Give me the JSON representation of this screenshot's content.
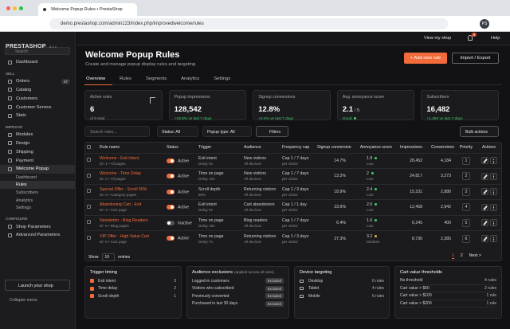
{
  "browser": {
    "tab_title": "Welcome Popup Rules • PrestaShop",
    "url": "demo.prestashop.com/admin123/index.php/improvedwelcome/rules",
    "avatar": "PS"
  },
  "sidebar": {
    "brand": "PRESTASHOP",
    "version": "8.1.2",
    "search": "Search",
    "dashboard": "Dashboard",
    "sections": [
      {
        "heading": "SELL",
        "items": [
          {
            "label": "Orders",
            "badge": 27
          },
          {
            "label": "Catalog"
          },
          {
            "label": "Customers"
          },
          {
            "label": "Customer Service"
          },
          {
            "label": "Stats"
          }
        ]
      },
      {
        "heading": "IMPROVE",
        "items": [
          {
            "label": "Modules"
          },
          {
            "label": "Design"
          },
          {
            "label": "Shipping"
          },
          {
            "label": "Payment"
          },
          {
            "label": "Welcome Popup",
            "open": true,
            "children": [
              "Dashboard",
              "Rules",
              "Subscribers",
              "Analytics",
              "Settings"
            ],
            "current": 1
          }
        ]
      },
      {
        "heading": "CONFIGURE",
        "items": [
          {
            "label": "Shop Parameters"
          },
          {
            "label": "Advanced Parameters"
          }
        ]
      }
    ],
    "launch": "Launch your shop",
    "collapse": "Collapse menu"
  },
  "topbar": {
    "view_shop": "View my shop",
    "notifications": 8,
    "help": "Help"
  },
  "header": {
    "title": "Welcome Popup Rules",
    "subtitle": "Create and manage popup display rules and targeting",
    "add_button": "+ Add new rule",
    "import_button": "Import / Export"
  },
  "tabs": {
    "items": [
      "Overview",
      "Rules",
      "Segments",
      "Analytics",
      "Settings"
    ],
    "active": 0
  },
  "kpis": [
    {
      "label": "Active rules",
      "value": "6",
      "sub": "of 9 total",
      "flag": true
    },
    {
      "label": "Popup impressions",
      "value": "128,542",
      "sub": "+18.6% vs last 7 days",
      "sub_color": "#3ecf6b"
    },
    {
      "label": "Signup conversions",
      "value": "12.8%",
      "sub": "+2.4% vs last 7 days",
      "sub_color": "#3ecf6b"
    },
    {
      "label": "Avg. annoyance score",
      "value": "2.1",
      "unit": "/ 5",
      "sub": "Good",
      "sub_color": "#3ecf6b",
      "dot": true
    },
    {
      "label": "Subscribers",
      "value": "16,482",
      "sub": "+1,284 vs last 7 days",
      "sub_color": "#3ecf6b"
    }
  ],
  "filters": {
    "search": "Search rules...",
    "status": "Status: All",
    "popup_type": "Popup type: All",
    "filters": "Filters",
    "bulk": "Bulk actions"
  },
  "table": {
    "columns": [
      "Rule name",
      "Status",
      "Trigger",
      "Audience",
      "Frequency cap",
      "Signup conversion",
      "Annoyance score",
      "Impressions",
      "Conversions",
      "Priority",
      "Actions"
    ],
    "rows": [
      {
        "name": "Welcome - Exit Intent",
        "meta": "ID: 1 • All pages",
        "on": true,
        "status": "Active",
        "trigger": "Exit intent",
        "trigger_sub": "Delay 0s",
        "audience": "New visitors",
        "audience_sub": "All devices",
        "cap": "Cap 1 / 7 days",
        "cap_sub": "per visitor",
        "signup": "14.7%",
        "score": 1.8,
        "level": "Low",
        "level_color": "#3ecf6b",
        "impressions": "28,452",
        "conversions": "4,184",
        "priority": 1
      },
      {
        "name": "Welcome - Time Delay",
        "meta": "ID: 2 • All pages",
        "on": true,
        "status": "Active",
        "trigger": "Time on page",
        "trigger_sub": "Delay 10s",
        "audience": "New visitors",
        "audience_sub": "All devices",
        "cap": "Cap 1 / 7 days",
        "cap_sub": "per visitor",
        "signup": "13.2%",
        "score": 2.0,
        "level": "Low",
        "level_color": "#3ecf6b",
        "impressions": "24,817",
        "conversions": "3,273",
        "priority": 2
      },
      {
        "name": "Special Offer - Scroll 50%",
        "meta": "ID: 3 • Category pages",
        "on": true,
        "status": "Active",
        "trigger": "Scroll depth",
        "trigger_sub": "50%",
        "audience": "Returning visitors",
        "audience_sub": "All devices",
        "cap": "Cap 1 / 3 days",
        "cap_sub": "per visitor",
        "signup": "18.9%",
        "score": 2.4,
        "level": "Low",
        "level_color": "#3ecf6b",
        "impressions": "15,231",
        "conversions": "2,880",
        "priority": 3
      },
      {
        "name": "Abandoning Cart - Exit",
        "meta": "ID: 4 • Cart page",
        "on": true,
        "status": "Active",
        "trigger": "Exit intent",
        "trigger_sub": "Delay 5s",
        "audience": "Cart abandoners",
        "audience_sub": "All devices",
        "cap": "Cap 1 / 1 day",
        "cap_sub": "per visitor",
        "signup": "23.6%",
        "score": 2.6,
        "level": "Low",
        "level_color": "#3ecf6b",
        "impressions": "12,458",
        "conversions": "2,942",
        "priority": 4
      },
      {
        "name": "Newsletter - Blog Readers",
        "meta": "ID: 5 • Blog pages",
        "on": false,
        "status": "Inactive",
        "trigger": "Time on page",
        "trigger_sub": "Delay 15s",
        "audience": "Blog readers",
        "audience_sub": "All devices",
        "cap": "Cap 1 / 7 days",
        "cap_sub": "per visitor",
        "signup": "6.4%",
        "score": 1.6,
        "level": "Low",
        "level_color": "#3ecf6b",
        "impressions": "6,245",
        "conversions": "400",
        "priority": 5
      },
      {
        "name": "VIP Offer - High Value Cart",
        "meta": "ID: 6 • Cart page",
        "on": true,
        "status": "Active",
        "trigger": "Time on page",
        "trigger_sub": "Delay 7s",
        "audience": "Returning visitors",
        "audience_sub": "All devices",
        "cap": "Cap 1 / 3 days",
        "cap_sub": "per visitor",
        "signup": "27.3%",
        "score": 3.2,
        "level": "Medium",
        "level_color": "#e8b73a",
        "impressions": "8,736",
        "conversions": "2,385",
        "priority": 6
      }
    ]
  },
  "pagination": {
    "show": "Show",
    "per_page": 10,
    "entries": "entries",
    "pages": [
      1,
      2
    ],
    "current": 0,
    "next": "Next >"
  },
  "panels": {
    "trigger_timing": {
      "title": "Trigger timing",
      "items": [
        {
          "label": "Exit intent",
          "count": 3
        },
        {
          "label": "Time delay",
          "count": 2
        },
        {
          "label": "Scroll depth",
          "count": 1
        }
      ]
    },
    "exclusions": {
      "title": "Audience exclusions",
      "note": "(applied across all rules)",
      "items": [
        {
          "label": "Logged-in customers",
          "tag": "Excluded"
        },
        {
          "label": "Visitors who subscribed",
          "tag": "Excluded"
        },
        {
          "label": "Previously converted",
          "tag": "Excluded"
        },
        {
          "label": "Purchased in last 30 days",
          "tag": "Excluded"
        }
      ]
    },
    "devices": {
      "title": "Device targeting",
      "items": [
        {
          "label": "Desktop",
          "count": "6 rules"
        },
        {
          "label": "Tablet",
          "count": "4 rules"
        },
        {
          "label": "Mobile",
          "count": "6 rules"
        }
      ]
    },
    "cart": {
      "title": "Cart value thresholds",
      "items": [
        {
          "label": "No threshold",
          "count": "4 rules"
        },
        {
          "label": "Cart value > $50",
          "count": "2 rules"
        },
        {
          "label": "Cart value > $100",
          "count": "1 rule"
        },
        {
          "label": "Cart value > $200",
          "count": "1 rule"
        }
      ]
    }
  }
}
